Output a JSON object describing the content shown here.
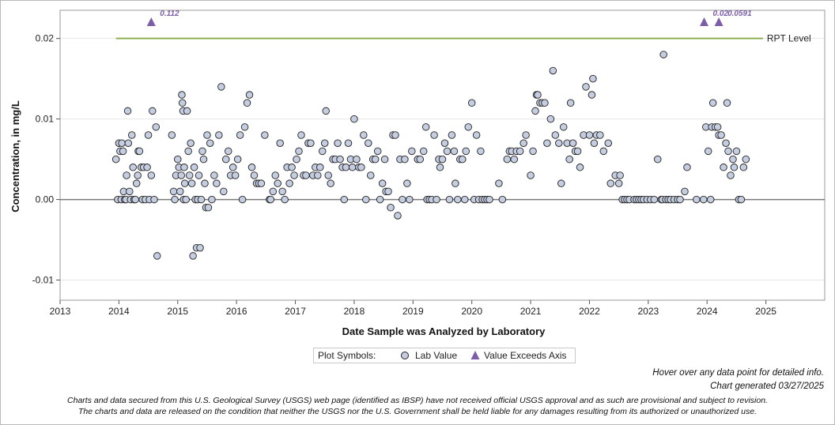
{
  "chart_data": {
    "type": "scatter",
    "xlabel": "Date Sample was Analyzed by Laboratory",
    "ylabel": "Concentration, in mg/L",
    "xlim": [
      2013.0,
      2026.0
    ],
    "ylim": [
      -0.0125,
      0.0235
    ],
    "x_ticks": [
      2013,
      2014,
      2015,
      2016,
      2017,
      2018,
      2019,
      2020,
      2021,
      2022,
      2023,
      2024,
      2025
    ],
    "y_ticks": [
      {
        "value": -0.01,
        "label": "-0.01"
      },
      {
        "value": 0.0,
        "label": "0.00"
      },
      {
        "value": 0.01,
        "label": "0.01"
      },
      {
        "value": 0.02,
        "label": "0.02"
      }
    ],
    "zero_line": 0.0,
    "reference_line": {
      "label": "RPT Level",
      "value": 0.02,
      "x_start": 2013.95,
      "x_end": 2024.95,
      "color": "#8db152"
    },
    "marker_color": "#c5cde0",
    "exceed_color": "#7b5ea7",
    "exceeds_axis": [
      {
        "x": 2014.55,
        "label": "0.112"
      },
      {
        "x": 2023.95,
        "label": "0.02"
      },
      {
        "x": 2024.2,
        "label": "0.0591"
      }
    ],
    "series": [
      {
        "name": "Lab Value",
        "points": [
          [
            2013.95,
            0.005
          ],
          [
            2013.98,
            0.0
          ],
          [
            2014.0,
            0.007
          ],
          [
            2014.02,
            0.006
          ],
          [
            2014.04,
            0.0
          ],
          [
            2014.05,
            0.007
          ],
          [
            2014.07,
            0.006
          ],
          [
            2014.08,
            0.001
          ],
          [
            2014.1,
            0.0
          ],
          [
            2014.12,
            0.0
          ],
          [
            2014.13,
            0.003
          ],
          [
            2014.15,
            0.011
          ],
          [
            2014.16,
            0.007
          ],
          [
            2014.18,
            0.001
          ],
          [
            2014.2,
            0.0
          ],
          [
            2014.22,
            0.008
          ],
          [
            2014.24,
            0.004
          ],
          [
            2014.26,
            0.0
          ],
          [
            2014.28,
            0.0
          ],
          [
            2014.3,
            0.002
          ],
          [
            2014.32,
            0.003
          ],
          [
            2014.33,
            0.006
          ],
          [
            2014.35,
            0.006
          ],
          [
            2014.38,
            0.004
          ],
          [
            2014.4,
            0.0
          ],
          [
            2014.42,
            0.004
          ],
          [
            2014.45,
            0.0
          ],
          [
            2014.48,
            0.004
          ],
          [
            2014.5,
            0.008
          ],
          [
            2014.52,
            0.0
          ],
          [
            2014.55,
            0.003
          ],
          [
            2014.57,
            0.011
          ],
          [
            2014.6,
            0.0
          ],
          [
            2014.63,
            0.009
          ],
          [
            2014.65,
            -0.007
          ],
          [
            2014.9,
            0.008
          ],
          [
            2014.93,
            0.001
          ],
          [
            2014.95,
            0.0
          ],
          [
            2014.97,
            0.003
          ],
          [
            2015.0,
            0.005
          ],
          [
            2015.02,
            0.004
          ],
          [
            2015.04,
            0.001
          ],
          [
            2015.06,
            0.003
          ],
          [
            2015.07,
            0.013
          ],
          [
            2015.08,
            0.012
          ],
          [
            2015.09,
            0.011
          ],
          [
            2015.1,
            0.0
          ],
          [
            2015.11,
            0.004
          ],
          [
            2015.12,
            0.002
          ],
          [
            2015.14,
            0.0
          ],
          [
            2015.16,
            0.011
          ],
          [
            2015.18,
            0.006
          ],
          [
            2015.2,
            0.003
          ],
          [
            2015.22,
            0.007
          ],
          [
            2015.24,
            0.002
          ],
          [
            2015.26,
            -0.007
          ],
          [
            2015.28,
            0.004
          ],
          [
            2015.3,
            0.0
          ],
          [
            2015.32,
            -0.006
          ],
          [
            2015.34,
            0.0
          ],
          [
            2015.36,
            0.003
          ],
          [
            2015.38,
            -0.006
          ],
          [
            2015.4,
            0.0
          ],
          [
            2015.42,
            0.006
          ],
          [
            2015.44,
            0.005
          ],
          [
            2015.46,
            0.002
          ],
          [
            2015.48,
            -0.001
          ],
          [
            2015.5,
            0.008
          ],
          [
            2015.52,
            -0.001
          ],
          [
            2015.55,
            0.007
          ],
          [
            2015.58,
            0.0
          ],
          [
            2015.62,
            0.003
          ],
          [
            2015.66,
            0.002
          ],
          [
            2015.7,
            0.008
          ],
          [
            2015.74,
            0.014
          ],
          [
            2015.78,
            0.001
          ],
          [
            2015.82,
            0.005
          ],
          [
            2015.86,
            0.006
          ],
          [
            2015.9,
            0.003
          ],
          [
            2015.94,
            0.004
          ],
          [
            2015.98,
            0.003
          ],
          [
            2016.02,
            0.005
          ],
          [
            2016.06,
            0.008
          ],
          [
            2016.1,
            0.0
          ],
          [
            2016.14,
            0.009
          ],
          [
            2016.18,
            0.012
          ],
          [
            2016.22,
            0.013
          ],
          [
            2016.26,
            0.004
          ],
          [
            2016.3,
            0.003
          ],
          [
            2016.34,
            0.002
          ],
          [
            2016.38,
            0.002
          ],
          [
            2016.42,
            0.002
          ],
          [
            2016.48,
            0.008
          ],
          [
            2016.56,
            0.0
          ],
          [
            2016.58,
            0.0
          ],
          [
            2016.62,
            0.001
          ],
          [
            2016.66,
            0.003
          ],
          [
            2016.7,
            0.002
          ],
          [
            2016.74,
            0.007
          ],
          [
            2016.78,
            0.001
          ],
          [
            2016.82,
            0.0
          ],
          [
            2016.86,
            0.004
          ],
          [
            2016.9,
            0.002
          ],
          [
            2016.94,
            0.004
          ],
          [
            2016.98,
            0.003
          ],
          [
            2017.02,
            0.005
          ],
          [
            2017.06,
            0.006
          ],
          [
            2017.1,
            0.008
          ],
          [
            2017.14,
            0.003
          ],
          [
            2017.18,
            0.003
          ],
          [
            2017.22,
            0.007
          ],
          [
            2017.26,
            0.007
          ],
          [
            2017.3,
            0.003
          ],
          [
            2017.34,
            0.004
          ],
          [
            2017.38,
            0.003
          ],
          [
            2017.42,
            0.004
          ],
          [
            2017.46,
            0.006
          ],
          [
            2017.5,
            0.007
          ],
          [
            2017.52,
            0.011
          ],
          [
            2017.56,
            0.003
          ],
          [
            2017.6,
            0.002
          ],
          [
            2017.64,
            0.005
          ],
          [
            2017.68,
            0.005
          ],
          [
            2017.72,
            0.007
          ],
          [
            2017.76,
            0.005
          ],
          [
            2017.8,
            0.004
          ],
          [
            2017.83,
            0.0
          ],
          [
            2017.86,
            0.004
          ],
          [
            2017.9,
            0.007
          ],
          [
            2017.94,
            0.005
          ],
          [
            2017.97,
            0.004
          ],
          [
            2018.0,
            0.01
          ],
          [
            2018.04,
            0.005
          ],
          [
            2018.08,
            0.004
          ],
          [
            2018.12,
            0.004
          ],
          [
            2018.16,
            0.008
          ],
          [
            2018.2,
            0.0
          ],
          [
            2018.24,
            0.007
          ],
          [
            2018.28,
            0.003
          ],
          [
            2018.32,
            0.005
          ],
          [
            2018.36,
            0.005
          ],
          [
            2018.4,
            0.006
          ],
          [
            2018.44,
            0.0
          ],
          [
            2018.48,
            0.002
          ],
          [
            2018.52,
            0.005
          ],
          [
            2018.54,
            0.001
          ],
          [
            2018.58,
            0.001
          ],
          [
            2018.62,
            -0.001
          ],
          [
            2018.66,
            0.008
          ],
          [
            2018.7,
            0.008
          ],
          [
            2018.74,
            -0.002
          ],
          [
            2018.78,
            0.005
          ],
          [
            2018.82,
            0.0
          ],
          [
            2018.86,
            0.005
          ],
          [
            2018.9,
            0.002
          ],
          [
            2018.94,
            0.0
          ],
          [
            2018.98,
            0.006
          ],
          [
            2019.08,
            0.005
          ],
          [
            2019.12,
            0.005
          ],
          [
            2019.18,
            0.006
          ],
          [
            2019.22,
            0.009
          ],
          [
            2019.24,
            0.0
          ],
          [
            2019.28,
            0.0
          ],
          [
            2019.32,
            0.0
          ],
          [
            2019.36,
            0.008
          ],
          [
            2019.4,
            0.0
          ],
          [
            2019.44,
            0.005
          ],
          [
            2019.46,
            0.004
          ],
          [
            2019.5,
            0.005
          ],
          [
            2019.54,
            0.007
          ],
          [
            2019.58,
            0.006
          ],
          [
            2019.62,
            0.0
          ],
          [
            2019.66,
            0.008
          ],
          [
            2019.7,
            0.006
          ],
          [
            2019.72,
            0.002
          ],
          [
            2019.76,
            0.0
          ],
          [
            2019.8,
            0.005
          ],
          [
            2019.84,
            0.005
          ],
          [
            2019.88,
            0.0
          ],
          [
            2019.9,
            0.006
          ],
          [
            2019.94,
            0.009
          ],
          [
            2020.0,
            0.012
          ],
          [
            2020.04,
            0.0
          ],
          [
            2020.08,
            0.008
          ],
          [
            2020.12,
            0.0
          ],
          [
            2020.15,
            0.006
          ],
          [
            2020.18,
            0.0
          ],
          [
            2020.22,
            0.0
          ],
          [
            2020.26,
            0.0
          ],
          [
            2020.3,
            0.0
          ],
          [
            2020.46,
            0.002
          ],
          [
            2020.52,
            0.0
          ],
          [
            2020.6,
            0.005
          ],
          [
            2020.64,
            0.006
          ],
          [
            2020.68,
            0.006
          ],
          [
            2020.72,
            0.005
          ],
          [
            2020.76,
            0.006
          ],
          [
            2020.82,
            0.006
          ],
          [
            2020.88,
            0.007
          ],
          [
            2020.92,
            0.008
          ],
          [
            2021.0,
            0.003
          ],
          [
            2021.04,
            0.006
          ],
          [
            2021.08,
            0.011
          ],
          [
            2021.1,
            0.013
          ],
          [
            2021.12,
            0.013
          ],
          [
            2021.16,
            0.012
          ],
          [
            2021.2,
            0.012
          ],
          [
            2021.24,
            0.012
          ],
          [
            2021.28,
            0.007
          ],
          [
            2021.34,
            0.01
          ],
          [
            2021.38,
            0.016
          ],
          [
            2021.42,
            0.008
          ],
          [
            2021.48,
            0.007
          ],
          [
            2021.52,
            0.002
          ],
          [
            2021.56,
            0.009
          ],
          [
            2021.62,
            0.007
          ],
          [
            2021.66,
            0.005
          ],
          [
            2021.68,
            0.012
          ],
          [
            2021.72,
            0.007
          ],
          [
            2021.76,
            0.006
          ],
          [
            2021.8,
            0.006
          ],
          [
            2021.84,
            0.004
          ],
          [
            2021.9,
            0.008
          ],
          [
            2021.94,
            0.014
          ],
          [
            2022.0,
            0.008
          ],
          [
            2022.04,
            0.013
          ],
          [
            2022.06,
            0.015
          ],
          [
            2022.08,
            0.007
          ],
          [
            2022.12,
            0.008
          ],
          [
            2022.18,
            0.008
          ],
          [
            2022.24,
            0.006
          ],
          [
            2022.32,
            0.007
          ],
          [
            2022.36,
            0.002
          ],
          [
            2022.44,
            0.003
          ],
          [
            2022.5,
            0.002
          ],
          [
            2022.52,
            0.003
          ],
          [
            2022.56,
            0.0
          ],
          [
            2022.6,
            0.0
          ],
          [
            2022.64,
            0.0
          ],
          [
            2022.68,
            0.0
          ],
          [
            2022.76,
            0.0
          ],
          [
            2022.8,
            0.0
          ],
          [
            2022.84,
            0.0
          ],
          [
            2022.88,
            0.0
          ],
          [
            2022.92,
            0.0
          ],
          [
            2022.98,
            0.0
          ],
          [
            2023.04,
            0.0
          ],
          [
            2023.1,
            0.0
          ],
          [
            2023.16,
            0.005
          ],
          [
            2023.22,
            0.0
          ],
          [
            2023.24,
            0.0
          ],
          [
            2023.26,
            0.018
          ],
          [
            2023.3,
            0.0
          ],
          [
            2023.34,
            0.0
          ],
          [
            2023.38,
            0.0
          ],
          [
            2023.44,
            0.0
          ],
          [
            2023.5,
            0.0
          ],
          [
            2023.54,
            0.0
          ],
          [
            2023.62,
            0.001
          ],
          [
            2023.66,
            0.004
          ],
          [
            2023.82,
            0.0
          ],
          [
            2023.94,
            0.0
          ],
          [
            2023.98,
            0.009
          ],
          [
            2024.02,
            0.006
          ],
          [
            2024.06,
            0.0
          ],
          [
            2024.08,
            0.009
          ],
          [
            2024.1,
            0.012
          ],
          [
            2024.14,
            0.009
          ],
          [
            2024.18,
            0.009
          ],
          [
            2024.2,
            0.008
          ],
          [
            2024.24,
            0.008
          ],
          [
            2024.28,
            0.004
          ],
          [
            2024.32,
            0.007
          ],
          [
            2024.34,
            0.012
          ],
          [
            2024.36,
            0.006
          ],
          [
            2024.4,
            0.003
          ],
          [
            2024.44,
            0.005
          ],
          [
            2024.46,
            0.004
          ],
          [
            2024.5,
            0.006
          ],
          [
            2024.54,
            0.0
          ],
          [
            2024.58,
            0.0
          ],
          [
            2024.62,
            0.004
          ],
          [
            2024.66,
            0.005
          ]
        ]
      }
    ]
  },
  "legend": {
    "heading": "Plot Symbols:",
    "lab_value": "Lab Value",
    "exceeds": "Value Exceeds Axis"
  },
  "notes": {
    "hover": "Hover over any data point for detailed info.",
    "generated": "Chart generated 03/27/2025",
    "disclaimer1": "Charts and data secured from this U.S. Geological Survey (USGS) web page (identified as IBSP) have not received official USGS approval and as such are provisional and subject to revision.",
    "disclaimer2": "The charts and data are released on the condition that neither the USGS nor the U.S. Government shall be held liable for any damages resulting from its authorized or unauthorized use."
  }
}
